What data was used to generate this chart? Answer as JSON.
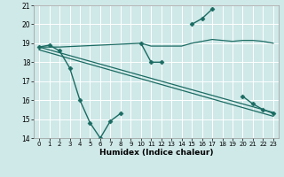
{
  "xlabel": "Humidex (Indice chaleur)",
  "background_color": "#cfe8e8",
  "grid_color": "#ffffff",
  "line_color": "#1a6b62",
  "xlim": [
    -0.5,
    23.5
  ],
  "ylim": [
    14,
    21
  ],
  "xticks": [
    0,
    1,
    2,
    3,
    4,
    5,
    6,
    7,
    8,
    9,
    10,
    11,
    12,
    13,
    14,
    15,
    16,
    17,
    18,
    19,
    20,
    21,
    22,
    23
  ],
  "yticks": [
    14,
    15,
    16,
    17,
    18,
    19,
    20,
    21
  ],
  "zigzag": {
    "segments": [
      {
        "x": [
          0,
          1,
          2,
          3,
          4,
          5,
          6,
          7,
          8,
          9
        ],
        "y": [
          18.8,
          18.9,
          18.6,
          17.7,
          16.0,
          14.8,
          14.0,
          14.9,
          15.3,
          null
        ]
      },
      {
        "x": [
          10,
          11,
          12,
          13,
          14
        ],
        "y": [
          19.0,
          18.0,
          18.0,
          null,
          null
        ]
      },
      {
        "x": [
          15,
          16,
          17,
          18,
          19,
          20,
          21,
          22,
          23
        ],
        "y": [
          20.0,
          20.3,
          20.8,
          null,
          null,
          16.2,
          15.8,
          15.5,
          15.3
        ]
      }
    ],
    "x": [
      0,
      1,
      2,
      3,
      4,
      5,
      6,
      7,
      8,
      10,
      11,
      12,
      15,
      16,
      17,
      20,
      21,
      22,
      23
    ],
    "y": [
      18.8,
      18.9,
      18.6,
      17.7,
      16.0,
      14.8,
      14.0,
      14.9,
      15.3,
      19.0,
      18.0,
      18.0,
      20.0,
      20.3,
      20.8,
      16.2,
      15.8,
      15.5,
      15.3
    ],
    "gaps_after": [
      8,
      12,
      17
    ],
    "marker": "D",
    "markersize": 2.5,
    "linewidth": 1.0
  },
  "flat_line": {
    "x": [
      0,
      2,
      10,
      11,
      14,
      15,
      16,
      17,
      18,
      19,
      20,
      21,
      22,
      23
    ],
    "y": [
      18.8,
      18.8,
      19.0,
      18.85,
      18.85,
      19.0,
      19.1,
      19.2,
      19.15,
      19.1,
      19.15,
      19.15,
      19.1,
      19.0
    ],
    "linewidth": 0.9
  },
  "trend1": {
    "x": [
      0,
      23
    ],
    "y": [
      18.8,
      15.35
    ],
    "linewidth": 0.9
  },
  "trend2": {
    "x": [
      0,
      23
    ],
    "y": [
      18.65,
      15.15
    ],
    "linewidth": 0.9
  }
}
